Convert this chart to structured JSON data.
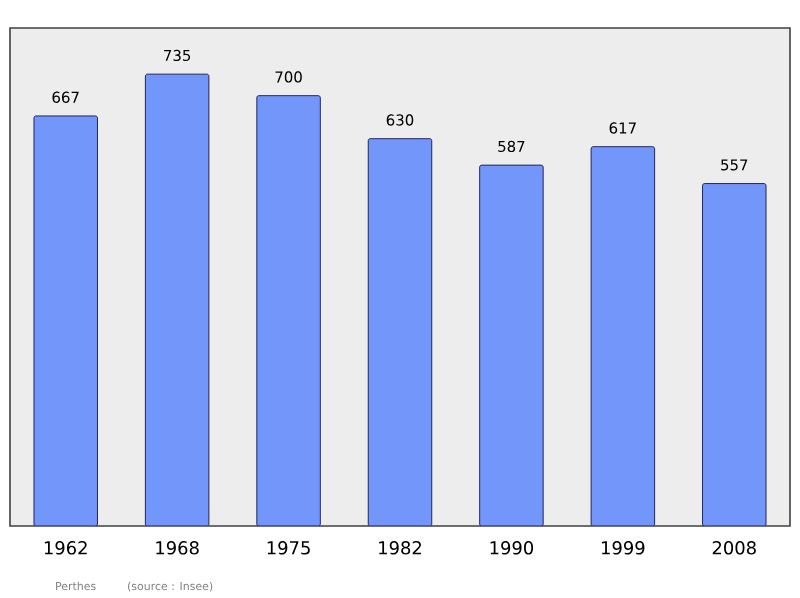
{
  "chart_data": {
    "type": "bar",
    "categories": [
      "1962",
      "1968",
      "1975",
      "1982",
      "1990",
      "1999",
      "2008"
    ],
    "values": [
      667,
      735,
      700,
      630,
      587,
      617,
      557
    ],
    "color": "#7396fa",
    "ylim": [
      0,
      810
    ],
    "data_labels": true,
    "annotations": [
      "Perthes",
      "(source : Insee)"
    ]
  }
}
